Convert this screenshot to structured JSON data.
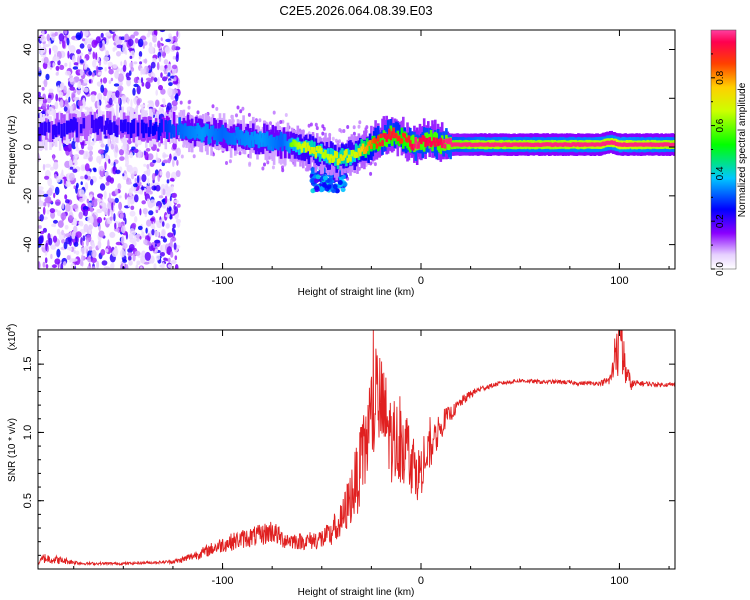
{
  "chart_data": [
    {
      "type": "heatmap",
      "title": "C2E5.2026.064.08.39.E03",
      "xlabel": "Height of straight line (km)",
      "ylabel": "Frequency (Hz)",
      "xlim": [
        -193,
        128
      ],
      "ylim": [
        -50,
        48
      ],
      "x_ticks": [
        -100,
        0,
        100
      ],
      "x_tick_labels": [
        "-100",
        "0",
        "100"
      ],
      "y_ticks": [
        -40,
        -20,
        0,
        20,
        40
      ],
      "y_tick_labels": [
        "-40",
        "-20",
        "0",
        "20",
        "40"
      ],
      "colorbar": {
        "label": "Normalized spectral amplitude",
        "range": [
          0,
          1
        ],
        "ticks": [
          0.0,
          0.2,
          0.4,
          0.6,
          0.8
        ],
        "tick_labels": [
          "0.0",
          "0.2",
          "0.4",
          "0.6",
          "0.8"
        ]
      },
      "noise_region": {
        "x_range": [
          -193,
          -122
        ],
        "freq_range": [
          -50,
          48
        ]
      },
      "ridge": {
        "x": [
          -193,
          -180,
          -165,
          -150,
          -135,
          -122,
          -110,
          -100,
          -90,
          -80,
          -70,
          -62,
          -55,
          -48,
          -42,
          -38,
          -34,
          -30,
          -26,
          -22,
          -18,
          -14,
          -10,
          -6,
          -2,
          0,
          4,
          8,
          14,
          20,
          30,
          50,
          70,
          90,
          96,
          100,
          110,
          128
        ],
        "freq": [
          6,
          8,
          9,
          8,
          7,
          8,
          6,
          5,
          4,
          3,
          2,
          0,
          -1,
          -3,
          -5,
          -4,
          -3,
          -1,
          0,
          2,
          4,
          5,
          4,
          2,
          1,
          2,
          3,
          2,
          1,
          1,
          1,
          1,
          1,
          1,
          2,
          1,
          1,
          1
        ],
        "amplitude": [
          0.3,
          0.32,
          0.3,
          0.32,
          0.35,
          0.45,
          0.5,
          0.45,
          0.48,
          0.5,
          0.45,
          0.55,
          0.6,
          0.55,
          0.6,
          0.6,
          0.55,
          0.65,
          0.7,
          0.75,
          0.8,
          0.78,
          0.75,
          0.78,
          0.85,
          0.8,
          0.82,
          0.8,
          0.85,
          0.85,
          0.9,
          0.9,
          0.9,
          0.92,
          0.92,
          0.95,
          0.92,
          0.9
        ]
      },
      "secondary_blob": {
        "x_range": [
          -55,
          -38
        ],
        "freq_range": [
          -18,
          -8
        ]
      }
    },
    {
      "type": "line",
      "xlabel": "Height of straight line (km)",
      "ylabel": "SNR (10 * v/v)",
      "y_multiplier_label": "(x10",
      "y_multiplier_exponent": "4",
      "xlim": [
        -193,
        128
      ],
      "ylim": [
        0,
        1.75
      ],
      "x_ticks": [
        -100,
        0,
        100
      ],
      "x_tick_labels": [
        "-100",
        "0",
        "100"
      ],
      "y_ticks": [
        0.5,
        1.0,
        1.5
      ],
      "y_tick_labels": [
        "0.5",
        "1.0",
        "1.5"
      ],
      "color": "#e02020",
      "series": [
        {
          "name": "SNR",
          "x": [
            -193,
            -190,
            -170,
            -150,
            -130,
            -122,
            -110,
            -100,
            -90,
            -80,
            -75,
            -70,
            -60,
            -50,
            -45,
            -40,
            -35,
            -30,
            -26,
            -22,
            -18,
            -14,
            -10,
            -6,
            -2,
            0,
            4,
            8,
            12,
            16,
            20,
            25,
            30,
            40,
            50,
            60,
            70,
            80,
            90,
            95,
            98,
            100,
            103,
            106,
            110,
            120,
            128
          ],
          "envelope": [
            0.04,
            0.08,
            0.04,
            0.04,
            0.05,
            0.06,
            0.12,
            0.18,
            0.22,
            0.25,
            0.28,
            0.22,
            0.2,
            0.22,
            0.25,
            0.35,
            0.55,
            0.75,
            1.05,
            1.25,
            1.1,
            0.9,
            0.95,
            0.85,
            0.7,
            0.72,
            0.85,
            0.98,
            1.1,
            1.15,
            1.22,
            1.28,
            1.32,
            1.36,
            1.38,
            1.37,
            1.37,
            1.36,
            1.36,
            1.38,
            1.5,
            1.7,
            1.45,
            1.35,
            1.36,
            1.35,
            1.35
          ],
          "jitter": [
            0.01,
            0.04,
            0.01,
            0.01,
            0.01,
            0.02,
            0.04,
            0.06,
            0.07,
            0.08,
            0.09,
            0.07,
            0.06,
            0.08,
            0.1,
            0.14,
            0.22,
            0.3,
            0.38,
            0.4,
            0.36,
            0.3,
            0.32,
            0.28,
            0.2,
            0.18,
            0.16,
            0.12,
            0.08,
            0.05,
            0.04,
            0.03,
            0.02,
            0.015,
            0.015,
            0.015,
            0.015,
            0.015,
            0.015,
            0.04,
            0.15,
            0.3,
            0.12,
            0.04,
            0.02,
            0.015,
            0.015
          ]
        }
      ]
    }
  ]
}
